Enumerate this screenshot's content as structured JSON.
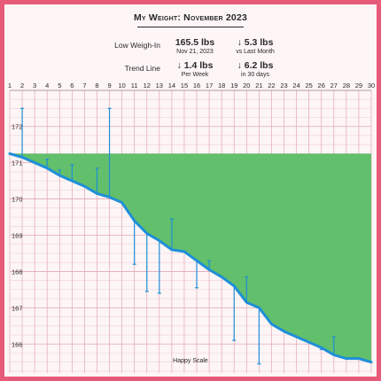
{
  "header": {
    "title": "My Weight: November 2023",
    "rows": [
      {
        "label": "Low Weigh-In",
        "stat1": {
          "value": "165.5 lbs",
          "sub": "Nov 21, 2023"
        },
        "stat2": {
          "value": "↓ 5.3 lbs",
          "sub": "vs Last Month"
        }
      },
      {
        "label": "Trend Line",
        "stat1": {
          "value": "↓ 1.4 lbs",
          "sub": "Per Week"
        },
        "stat2": {
          "value": "↓ 6.2 lbs",
          "sub": "in 30 days"
        }
      }
    ]
  },
  "chart_data": {
    "type": "line",
    "xlabel": "",
    "ylabel": "",
    "watermark": "Happy Scale",
    "x": [
      1,
      2,
      3,
      4,
      5,
      6,
      7,
      8,
      9,
      10,
      11,
      12,
      13,
      14,
      15,
      16,
      17,
      18,
      19,
      20,
      21,
      22,
      23,
      24,
      25,
      26,
      27,
      28,
      29,
      30
    ],
    "xlim": [
      1,
      30
    ],
    "ylim": [
      165.2,
      172.8
    ],
    "yticks": [
      166,
      167,
      168,
      169,
      170,
      171,
      172
    ],
    "goal_weight": 171.25,
    "series": [
      {
        "kind": "trend",
        "values": [
          171.25,
          171.15,
          171.0,
          170.85,
          170.65,
          170.5,
          170.35,
          170.15,
          170.05,
          169.9,
          169.4,
          169.05,
          168.85,
          168.6,
          168.55,
          168.3,
          168.05,
          167.85,
          167.6,
          167.15,
          167.0,
          166.55,
          166.35,
          166.2,
          166.05,
          165.9,
          165.7,
          165.6,
          165.6,
          165.5
        ]
      },
      {
        "kind": "weigh-ins",
        "values": [
          null,
          172.5,
          null,
          171.1,
          170.8,
          170.95,
          null,
          170.85,
          172.5,
          null,
          168.2,
          167.45,
          167.4,
          169.45,
          null,
          167.55,
          168.3,
          null,
          166.1,
          167.85,
          165.45,
          null,
          null,
          null,
          null,
          165.85,
          166.2,
          null,
          null,
          null
        ]
      }
    ],
    "colors": {
      "fill": "#62bf6b",
      "trend": "#1e8fd8",
      "stem": "#1e8fd8",
      "grid_major": "#e3a9b6",
      "grid_minor": "#f1d0d8",
      "background": "#fdf5f6",
      "frame": "#e75a78"
    }
  }
}
